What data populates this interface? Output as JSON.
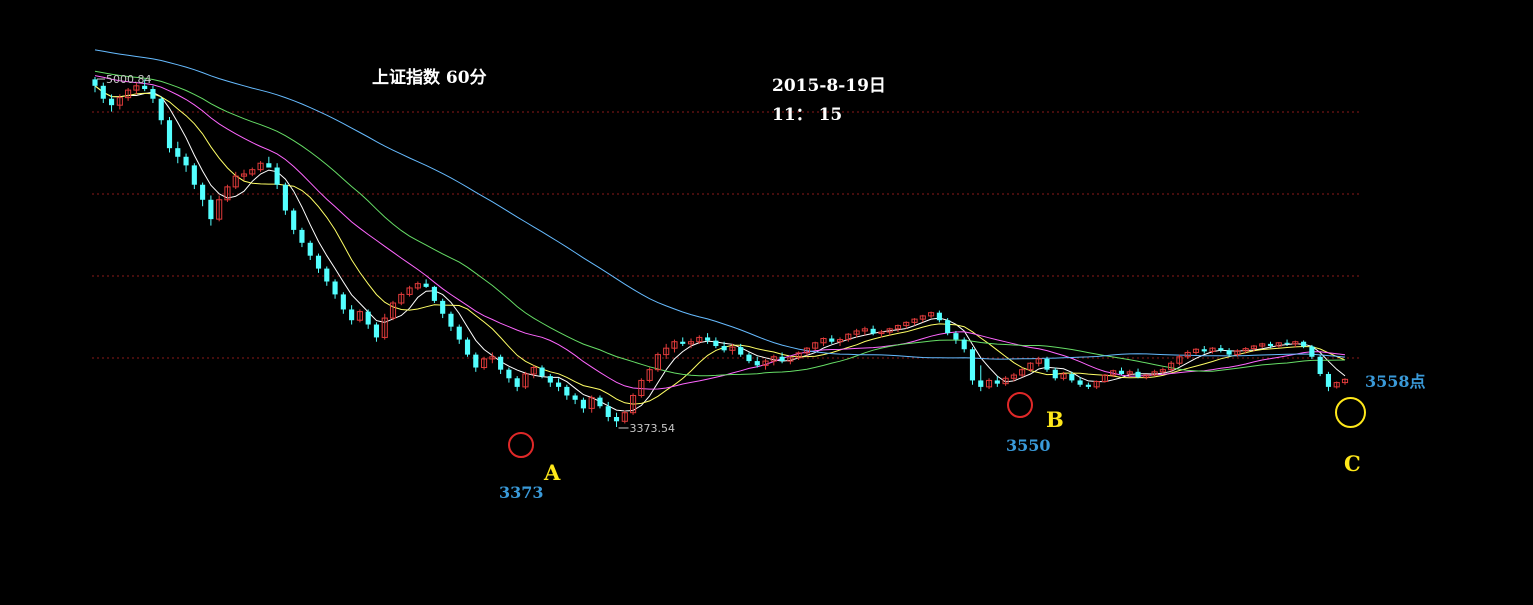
{
  "title": "上证指数 60分",
  "date": "2015-8-19日",
  "time": "11： 15",
  "colors": {
    "background": "#000000",
    "up_candle": "#e03b3b",
    "down_candle": "#54ffff",
    "grid": "#8a1a1a",
    "ma5": "#ffffff",
    "ma10": "#ffff66",
    "ma20": "#ff66ff",
    "ma30": "#66dd66",
    "ma60": "#66bbff",
    "marker_red": "#e02828",
    "marker_yellow": "#ffe81a",
    "label_blue": "#3a9ad9",
    "label_yellow": "#ffe81a"
  },
  "annotations": {
    "high_label": "5000.84",
    "low_label": "3373.54",
    "points": [
      {
        "letter": "A",
        "value_label": "3373",
        "marker": "red"
      },
      {
        "letter": "B",
        "value_label": "3550",
        "marker": "red"
      },
      {
        "letter": "C",
        "value_label": "3558点",
        "marker": "yellow"
      }
    ]
  },
  "chart_data": {
    "type": "candlestick",
    "grid": "horizontal dotted",
    "ylim": [
      3220,
      5080
    ],
    "candles": [
      [
        4990,
        5000.84,
        4930,
        4960
      ],
      [
        4960,
        4975,
        4880,
        4900
      ],
      [
        4900,
        4920,
        4840,
        4870
      ],
      [
        4870,
        4920,
        4850,
        4905
      ],
      [
        4905,
        4950,
        4890,
        4940
      ],
      [
        4940,
        4975,
        4920,
        4960
      ],
      [
        4960,
        4990,
        4935,
        4945
      ],
      [
        4945,
        4960,
        4880,
        4900
      ],
      [
        4900,
        4910,
        4780,
        4800
      ],
      [
        4800,
        4815,
        4650,
        4670
      ],
      [
        4670,
        4700,
        4600,
        4630
      ],
      [
        4630,
        4645,
        4560,
        4590
      ],
      [
        4590,
        4600,
        4480,
        4500
      ],
      [
        4500,
        4510,
        4400,
        4430
      ],
      [
        4430,
        4450,
        4310,
        4340
      ],
      [
        4340,
        4450,
        4330,
        4430
      ],
      [
        4430,
        4500,
        4420,
        4490
      ],
      [
        4490,
        4560,
        4480,
        4540
      ],
      [
        4540,
        4570,
        4520,
        4550
      ],
      [
        4550,
        4580,
        4540,
        4570
      ],
      [
        4570,
        4610,
        4560,
        4600
      ],
      [
        4600,
        4630,
        4580,
        4580
      ],
      [
        4580,
        4600,
        4480,
        4500
      ],
      [
        4500,
        4510,
        4360,
        4380
      ],
      [
        4380,
        4390,
        4270,
        4290
      ],
      [
        4290,
        4300,
        4210,
        4230
      ],
      [
        4230,
        4240,
        4150,
        4170
      ],
      [
        4170,
        4180,
        4090,
        4110
      ],
      [
        4110,
        4120,
        4030,
        4050
      ],
      [
        4050,
        4060,
        3970,
        3990
      ],
      [
        3990,
        4000,
        3900,
        3920
      ],
      [
        3920,
        3940,
        3850,
        3870
      ],
      [
        3870,
        3920,
        3860,
        3910
      ],
      [
        3910,
        3920,
        3830,
        3850
      ],
      [
        3850,
        3860,
        3770,
        3790
      ],
      [
        3790,
        3900,
        3780,
        3880
      ],
      [
        3880,
        3960,
        3870,
        3950
      ],
      [
        3950,
        4000,
        3940,
        3990
      ],
      [
        3990,
        4030,
        3980,
        4020
      ],
      [
        4020,
        4050,
        4010,
        4040
      ],
      [
        4040,
        4060,
        4020,
        4025
      ],
      [
        4025,
        4030,
        3950,
        3960
      ],
      [
        3960,
        3970,
        3880,
        3900
      ],
      [
        3900,
        3910,
        3820,
        3840
      ],
      [
        3840,
        3850,
        3760,
        3780
      ],
      [
        3780,
        3790,
        3700,
        3710
      ],
      [
        3710,
        3720,
        3630,
        3650
      ],
      [
        3650,
        3700,
        3640,
        3690
      ],
      [
        3690,
        3720,
        3670,
        3700
      ],
      [
        3700,
        3710,
        3620,
        3640
      ],
      [
        3640,
        3650,
        3580,
        3600
      ],
      [
        3600,
        3610,
        3540,
        3560
      ],
      [
        3560,
        3630,
        3550,
        3620
      ],
      [
        3620,
        3660,
        3600,
        3650
      ],
      [
        3650,
        3660,
        3600,
        3610
      ],
      [
        3610,
        3620,
        3560,
        3580
      ],
      [
        3580,
        3600,
        3540,
        3560
      ],
      [
        3560,
        3570,
        3500,
        3520
      ],
      [
        3520,
        3530,
        3480,
        3500
      ],
      [
        3500,
        3510,
        3440,
        3460
      ],
      [
        3460,
        3520,
        3440,
        3510
      ],
      [
        3510,
        3520,
        3460,
        3470
      ],
      [
        3470,
        3490,
        3400,
        3420
      ],
      [
        3420,
        3440,
        3373.54,
        3400
      ],
      [
        3400,
        3450,
        3390,
        3440
      ],
      [
        3440,
        3530,
        3430,
        3520
      ],
      [
        3520,
        3600,
        3510,
        3590
      ],
      [
        3590,
        3650,
        3580,
        3640
      ],
      [
        3640,
        3720,
        3630,
        3710
      ],
      [
        3710,
        3760,
        3690,
        3740
      ],
      [
        3740,
        3780,
        3720,
        3770
      ],
      [
        3770,
        3790,
        3750,
        3760
      ],
      [
        3760,
        3785,
        3740,
        3770
      ],
      [
        3770,
        3800,
        3760,
        3790
      ],
      [
        3790,
        3810,
        3760,
        3775
      ],
      [
        3775,
        3790,
        3740,
        3750
      ],
      [
        3750,
        3770,
        3720,
        3730
      ],
      [
        3730,
        3760,
        3710,
        3745
      ],
      [
        3745,
        3760,
        3700,
        3710
      ],
      [
        3710,
        3720,
        3670,
        3680
      ],
      [
        3680,
        3700,
        3650,
        3660
      ],
      [
        3660,
        3690,
        3640,
        3680
      ],
      [
        3680,
        3710,
        3660,
        3700
      ],
      [
        3700,
        3720,
        3670,
        3680
      ],
      [
        3680,
        3700,
        3665,
        3695
      ],
      [
        3695,
        3725,
        3685,
        3718
      ],
      [
        3718,
        3745,
        3705,
        3740
      ],
      [
        3740,
        3770,
        3730,
        3765
      ],
      [
        3765,
        3790,
        3750,
        3785
      ],
      [
        3785,
        3800,
        3760,
        3770
      ],
      [
        3770,
        3790,
        3750,
        3780
      ],
      [
        3780,
        3810,
        3770,
        3805
      ],
      [
        3805,
        3830,
        3790,
        3820
      ],
      [
        3820,
        3840,
        3800,
        3830
      ],
      [
        3830,
        3845,
        3800,
        3808
      ],
      [
        3808,
        3825,
        3790,
        3815
      ],
      [
        3815,
        3835,
        3800,
        3830
      ],
      [
        3830,
        3850,
        3815,
        3845
      ],
      [
        3845,
        3865,
        3830,
        3860
      ],
      [
        3860,
        3880,
        3845,
        3875
      ],
      [
        3875,
        3895,
        3860,
        3890
      ],
      [
        3890,
        3910,
        3880,
        3905
      ],
      [
        3905,
        3915,
        3860,
        3870
      ],
      [
        3870,
        3880,
        3800,
        3810
      ],
      [
        3810,
        3820,
        3760,
        3780
      ],
      [
        3780,
        3790,
        3720,
        3735
      ],
      [
        3735,
        3745,
        3570,
        3590
      ],
      [
        3590,
        3660,
        3540,
        3560
      ],
      [
        3560,
        3600,
        3550,
        3590
      ],
      [
        3590,
        3610,
        3560,
        3575
      ],
      [
        3575,
        3610,
        3565,
        3600
      ],
      [
        3600,
        3625,
        3585,
        3615
      ],
      [
        3615,
        3650,
        3605,
        3640
      ],
      [
        3640,
        3675,
        3630,
        3670
      ],
      [
        3670,
        3700,
        3655,
        3690
      ],
      [
        3690,
        3700,
        3630,
        3640
      ],
      [
        3640,
        3650,
        3590,
        3600
      ],
      [
        3600,
        3630,
        3590,
        3620
      ],
      [
        3620,
        3630,
        3580,
        3590
      ],
      [
        3590,
        3605,
        3560,
        3570
      ],
      [
        3570,
        3580,
        3550,
        3560
      ],
      [
        3560,
        3590,
        3550,
        3585
      ],
      [
        3585,
        3620,
        3580,
        3615
      ],
      [
        3615,
        3640,
        3605,
        3635
      ],
      [
        3635,
        3650,
        3615,
        3620
      ],
      [
        3620,
        3640,
        3605,
        3630
      ],
      [
        3630,
        3645,
        3600,
        3605
      ],
      [
        3605,
        3620,
        3595,
        3615
      ],
      [
        3615,
        3640,
        3610,
        3630
      ],
      [
        3630,
        3650,
        3620,
        3640
      ],
      [
        3640,
        3680,
        3630,
        3670
      ],
      [
        3670,
        3710,
        3660,
        3700
      ],
      [
        3700,
        3730,
        3690,
        3720
      ],
      [
        3720,
        3740,
        3710,
        3735
      ],
      [
        3735,
        3750,
        3715,
        3725
      ],
      [
        3725,
        3745,
        3715,
        3740
      ],
      [
        3740,
        3755,
        3720,
        3730
      ],
      [
        3730,
        3740,
        3700,
        3710
      ],
      [
        3710,
        3735,
        3700,
        3728
      ],
      [
        3728,
        3745,
        3715,
        3738
      ],
      [
        3738,
        3755,
        3725,
        3750
      ],
      [
        3750,
        3765,
        3740,
        3760
      ],
      [
        3760,
        3770,
        3740,
        3750
      ],
      [
        3750,
        3768,
        3742,
        3765
      ],
      [
        3765,
        3780,
        3750,
        3760
      ],
      [
        3760,
        3775,
        3745,
        3770
      ],
      [
        3770,
        3776,
        3740,
        3748
      ],
      [
        3748,
        3755,
        3690,
        3700
      ],
      [
        3700,
        3710,
        3610,
        3620
      ],
      [
        3620,
        3630,
        3540,
        3560
      ],
      [
        3560,
        3585,
        3552,
        3580
      ],
      [
        3580,
        3600,
        3570,
        3595
      ]
    ]
  }
}
